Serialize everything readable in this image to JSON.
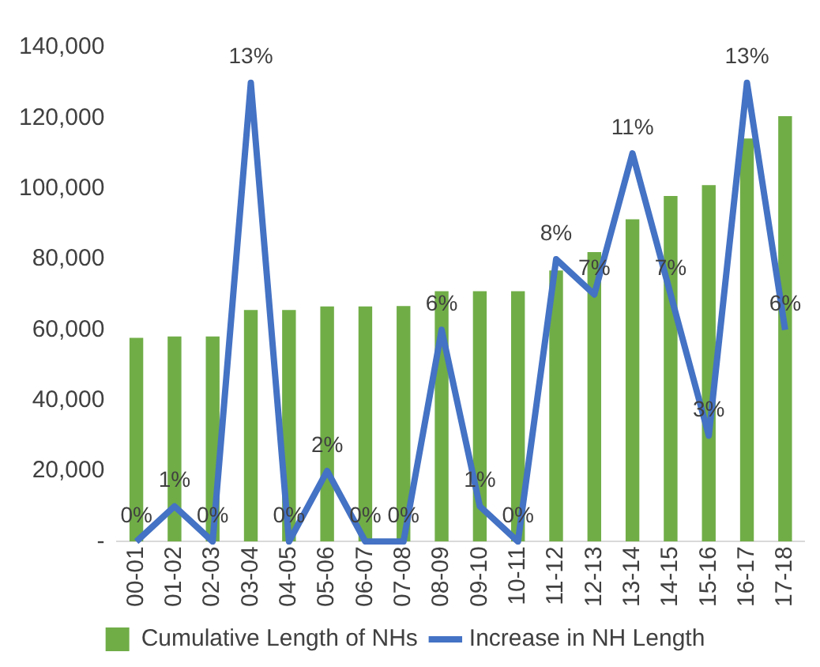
{
  "chart_data": {
    "type": "bar",
    "categories": [
      "00-01",
      "01-02",
      "02-03",
      "03-04",
      "04-05",
      "05-06",
      "06-07",
      "07-08",
      "08-09",
      "09-10",
      "10-11",
      "11-12",
      "12-13",
      "13-14",
      "14-15",
      "15-16",
      "16-17",
      "17-18"
    ],
    "series": [
      {
        "name": "Cumulative Length of NHs",
        "color": "#70ad47",
        "values": [
          57700,
          58100,
          58100,
          65600,
          65600,
          66600,
          66600,
          66700,
          70900,
          70900,
          70900,
          76800,
          82000,
          91300,
          97900,
          101000,
          114200,
          120500
        ]
      },
      {
        "name": "Increase in NH Length",
        "type": "line",
        "axis": "y2",
        "color": "#4472c4",
        "values": [
          0,
          1,
          0,
          13,
          0,
          2,
          0,
          0,
          6,
          1,
          0,
          8,
          7,
          11,
          7,
          3,
          13,
          6
        ],
        "value_labels": [
          "0%",
          "1%",
          "0%",
          "13%",
          "0%",
          "2%",
          "0%",
          "0%",
          "6%",
          "1%",
          "0%",
          "8%",
          "7%",
          "11%",
          "7%",
          "3%",
          "13%",
          "6%"
        ]
      }
    ],
    "ylim": [
      0,
      140000
    ],
    "yticks": [
      {
        "value": 0,
        "label": "-"
      },
      {
        "value": 20000,
        "label": "20,000"
      },
      {
        "value": 40000,
        "label": "40,000"
      },
      {
        "value": 60000,
        "label": "60,000"
      },
      {
        "value": 80000,
        "label": "80,000"
      },
      {
        "value": 100000,
        "label": "100,000"
      },
      {
        "value": 120000,
        "label": "120,000"
      },
      {
        "value": 140000,
        "label": "140,000"
      }
    ],
    "grid": false,
    "legend": "bottom",
    "marker": "none"
  }
}
